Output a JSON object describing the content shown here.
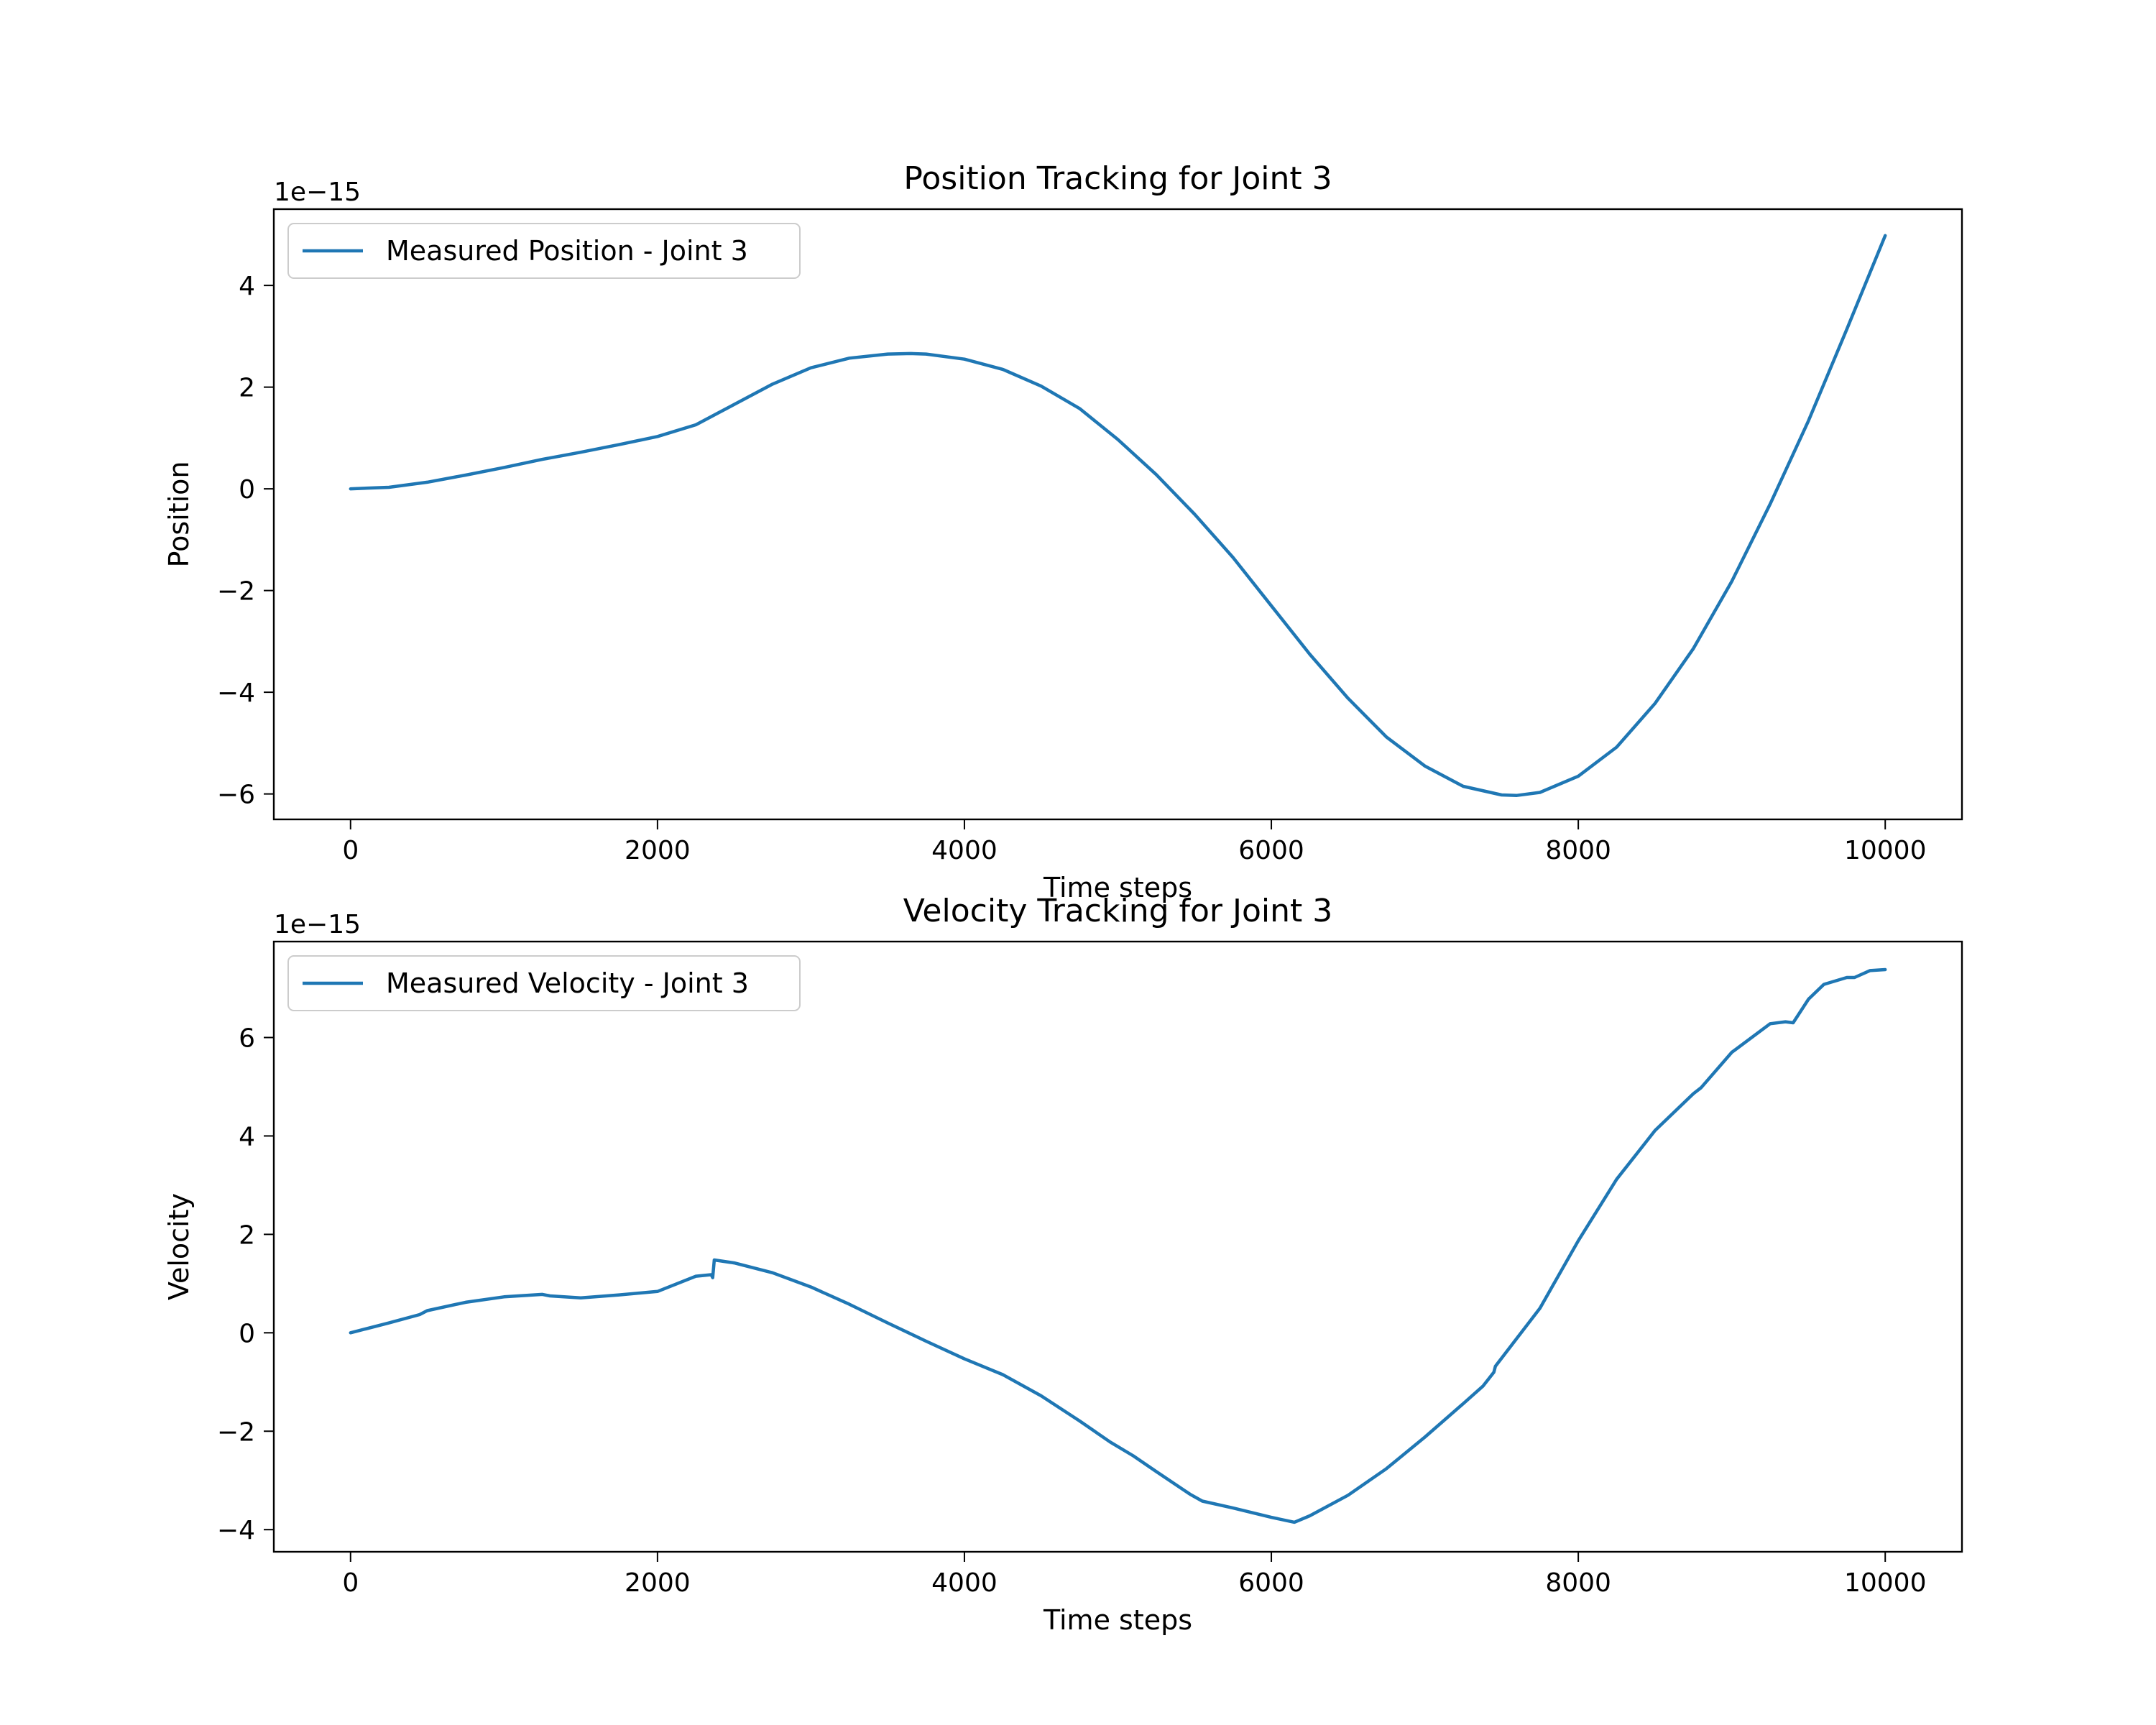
{
  "chart_data": [
    {
      "type": "line",
      "title": "Position Tracking for Joint 3",
      "xlabel": "Time steps",
      "ylabel": "Position",
      "offset_label": "1e−15",
      "xlim": [
        -500,
        10500
      ],
      "ylim": [
        -6.5,
        5.5
      ],
      "xticks": [
        0,
        2000,
        4000,
        6000,
        8000,
        10000
      ],
      "yticks": [
        -6,
        -4,
        -2,
        0,
        2,
        4
      ],
      "xtick_labels": [
        "0",
        "2000",
        "4000",
        "6000",
        "8000",
        "10000"
      ],
      "ytick_labels": [
        "−6",
        "−4",
        "−2",
        "0",
        "2",
        "4"
      ],
      "grid": false,
      "legend_position": "upper-left",
      "series": [
        {
          "name": "Measured Position - Joint 3",
          "color": "#1f77b4",
          "x": [
            0,
            250,
            500,
            750,
            1000,
            1250,
            1500,
            1750,
            2000,
            2250,
            2400,
            2750,
            3000,
            3250,
            3500,
            3650,
            3750,
            4000,
            4250,
            4500,
            4750,
            5000,
            5250,
            5500,
            5750,
            6000,
            6250,
            6500,
            6750,
            7000,
            7250,
            7500,
            7600,
            7750,
            8000,
            8250,
            8500,
            8750,
            9000,
            9250,
            9500,
            9750,
            10000
          ],
          "y": [
            0.0,
            0.03,
            0.13,
            0.27,
            0.42,
            0.58,
            0.72,
            0.87,
            1.03,
            1.26,
            1.5,
            2.06,
            2.38,
            2.57,
            2.65,
            2.66,
            2.65,
            2.55,
            2.35,
            2.02,
            1.58,
            0.97,
            0.28,
            -0.5,
            -1.35,
            -2.3,
            -3.25,
            -4.12,
            -4.88,
            -5.45,
            -5.85,
            -6.02,
            -6.03,
            -5.97,
            -5.65,
            -5.08,
            -4.22,
            -3.14,
            -1.82,
            -0.3,
            1.34,
            3.14,
            4.98
          ]
        }
      ]
    },
    {
      "type": "line",
      "title": "Velocity Tracking for Joint 3",
      "xlabel": "Time steps",
      "ylabel": "Velocity",
      "offset_label": "1e−15",
      "xlim": [
        -500,
        10500
      ],
      "ylim": [
        -4.45,
        7.95
      ],
      "xticks": [
        0,
        2000,
        4000,
        6000,
        8000,
        10000
      ],
      "yticks": [
        -4,
        -2,
        0,
        2,
        4,
        6
      ],
      "xtick_labels": [
        "0",
        "2000",
        "4000",
        "6000",
        "8000",
        "10000"
      ],
      "ytick_labels": [
        "−4",
        "−2",
        "0",
        "2",
        "4",
        "6"
      ],
      "grid": false,
      "legend_position": "upper-left",
      "series": [
        {
          "name": "Measured Velocity - Joint 3",
          "color": "#1f77b4",
          "x": [
            0,
            250,
            450,
            500,
            750,
            1000,
            1250,
            1300,
            1500,
            1750,
            2000,
            2250,
            2350,
            2360,
            2370,
            2500,
            2750,
            3000,
            3250,
            3500,
            3750,
            4000,
            4250,
            4500,
            4750,
            4950,
            5100,
            5250,
            5470,
            5550,
            5750,
            6000,
            6150,
            6250,
            6500,
            6750,
            7000,
            7250,
            7380,
            7450,
            7460,
            7750,
            8000,
            8250,
            8500,
            8750,
            8800,
            9000,
            9250,
            9350,
            9400,
            9500,
            9600,
            9750,
            9800,
            9900,
            10000
          ],
          "y": [
            0.0,
            0.2,
            0.37,
            0.45,
            0.62,
            0.73,
            0.78,
            0.75,
            0.71,
            0.77,
            0.84,
            1.15,
            1.18,
            1.12,
            1.48,
            1.42,
            1.22,
            0.93,
            0.58,
            0.2,
            -0.17,
            -0.53,
            -0.85,
            -1.28,
            -1.79,
            -2.22,
            -2.5,
            -2.82,
            -3.28,
            -3.42,
            -3.56,
            -3.75,
            -3.85,
            -3.72,
            -3.3,
            -2.76,
            -2.12,
            -1.44,
            -1.08,
            -0.8,
            -0.68,
            0.5,
            1.87,
            3.12,
            4.11,
            4.86,
            4.98,
            5.7,
            6.28,
            6.32,
            6.3,
            6.78,
            7.08,
            7.22,
            7.22,
            7.36,
            7.38
          ]
        }
      ]
    }
  ]
}
